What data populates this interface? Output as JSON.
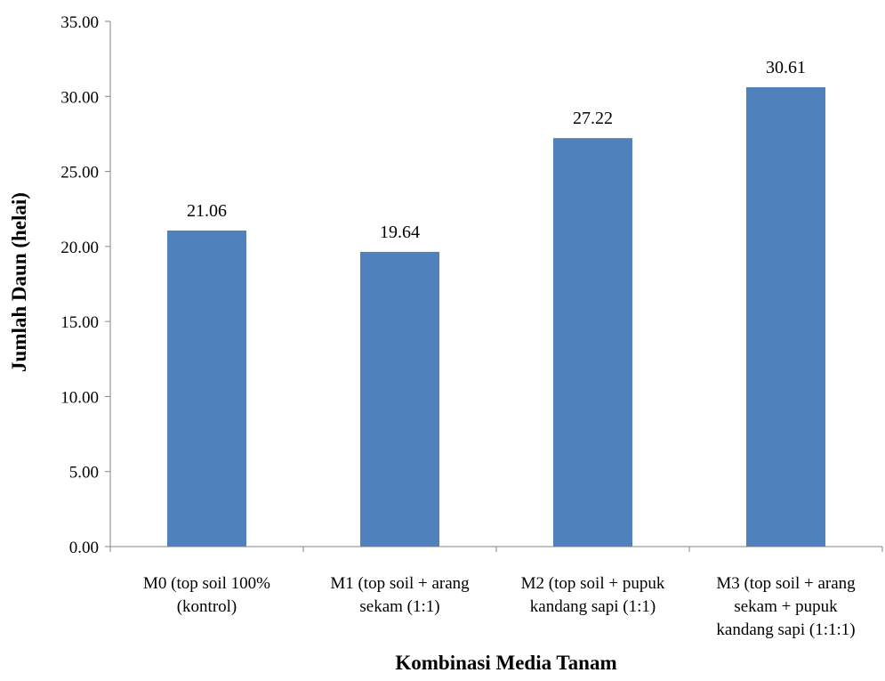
{
  "chart_data": {
    "type": "bar",
    "title": "",
    "xlabel": "Kombinasi Media Tanam",
    "ylabel": "Jumlah Daun (helai)",
    "ylim": [
      0,
      35
    ],
    "ytick_step": 5,
    "yticks": [
      "0.00",
      "5.00",
      "10.00",
      "15.00",
      "20.00",
      "25.00",
      "30.00",
      "35.00"
    ],
    "categories": [
      [
        "M0 (top soil 100%",
        "(kontrol)"
      ],
      [
        "M1 (top soil + arang",
        "sekam (1:1)"
      ],
      [
        "M2 (top soil + pupuk",
        "kandang sapi (1:1)"
      ],
      [
        "M3 (top soil + arang",
        "sekam +  pupuk",
        "kandang sapi (1:1:1)"
      ]
    ],
    "values": [
      21.06,
      19.64,
      27.22,
      30.61
    ],
    "data_labels": [
      "21.06",
      "19.64",
      "27.22",
      "30.61"
    ],
    "bar_color": "#4f81bd",
    "grid": false,
    "legend": "none"
  }
}
